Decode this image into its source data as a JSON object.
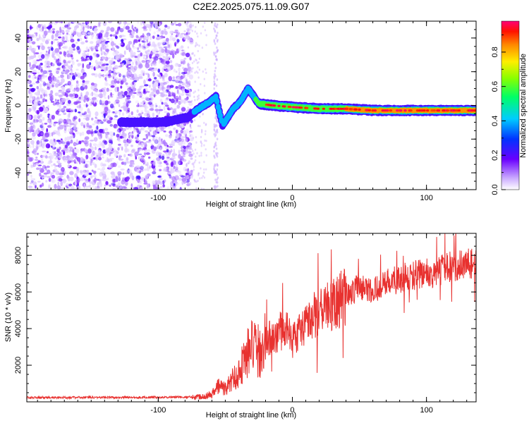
{
  "title": "C2E2.2025.075.11.09.G07",
  "chart_data": [
    {
      "type": "heatmap",
      "title": "C2E2.2025.075.11.09.G07",
      "xlabel": "Height of straight line (km)",
      "ylabel": "Frequency (Hz)",
      "xlim": [
        -198,
        137
      ],
      "ylim": [
        -50,
        50
      ],
      "xticks": [
        -100,
        0,
        100
      ],
      "yticks": [
        -40,
        -20,
        0,
        20,
        40
      ],
      "colorbar": {
        "label": "Normalized spectral amplitude",
        "range": [
          0,
          0.98
        ],
        "ticks": [
          "0.0",
          "0.2",
          "0.4",
          "0.6",
          "0.8"
        ],
        "colormap": [
          "#ffffff",
          "#6a00ff",
          "#0055ff",
          "#00ffff",
          "#00ff00",
          "#ffff00",
          "#ff8800",
          "#ff0000",
          "#ff0066"
        ]
      },
      "features": {
        "noise_region_x": [
          -198,
          -78
        ],
        "faint_noise_column_x": -57,
        "track": [
          {
            "x": -128,
            "y": -10,
            "v": 0.3
          },
          {
            "x": -110,
            "y": -10,
            "v": 0.35
          },
          {
            "x": -95,
            "y": -10,
            "v": 0.3
          },
          {
            "x": -78,
            "y": -7,
            "v": 0.3
          },
          {
            "x": -70,
            "y": -2,
            "v": 0.4
          },
          {
            "x": -62,
            "y": 2,
            "v": 0.5
          },
          {
            "x": -57,
            "y": 5,
            "v": 0.4
          },
          {
            "x": -52,
            "y": -12,
            "v": 0.35
          },
          {
            "x": -45,
            "y": -3,
            "v": 0.4
          },
          {
            "x": -38,
            "y": 3,
            "v": 0.45
          },
          {
            "x": -33,
            "y": 10,
            "v": 0.45
          },
          {
            "x": -25,
            "y": 1,
            "v": 0.6
          },
          {
            "x": -15,
            "y": 0,
            "v": 0.75
          },
          {
            "x": 0,
            "y": -1,
            "v": 0.7
          },
          {
            "x": 20,
            "y": -2,
            "v": 0.75
          },
          {
            "x": 40,
            "y": -2,
            "v": 0.8
          },
          {
            "x": 60,
            "y": -3,
            "v": 0.8
          },
          {
            "x": 80,
            "y": -3,
            "v": 0.85
          },
          {
            "x": 100,
            "y": -3,
            "v": 0.85
          },
          {
            "x": 120,
            "y": -3,
            "v": 0.9
          },
          {
            "x": 137,
            "y": -3,
            "v": 0.9
          }
        ]
      }
    },
    {
      "type": "line",
      "xlabel": "Height of straight line (km)",
      "ylabel": "SNR (10 * v/v)",
      "xlim": [
        -198,
        137
      ],
      "ylim": [
        0,
        9200
      ],
      "xticks": [
        -100,
        0,
        100
      ],
      "yticks": [
        2000,
        4000,
        6000,
        8000
      ],
      "color": "#e8312f",
      "x": [
        -198,
        -150,
        -100,
        -80,
        -70,
        -60,
        -55,
        -50,
        -45,
        -40,
        -35,
        -30,
        -25,
        -20,
        -15,
        -10,
        -5,
        0,
        10,
        20,
        30,
        40,
        50,
        60,
        70,
        80,
        90,
        100,
        105,
        110,
        120,
        137
      ],
      "values": [
        230,
        240,
        250,
        260,
        280,
        400,
        900,
        700,
        1200,
        1600,
        2500,
        3000,
        2700,
        3300,
        3600,
        3800,
        4000,
        3300,
        4400,
        5000,
        5300,
        5800,
        6300,
        6100,
        6500,
        6700,
        6900,
        7000,
        6800,
        7200,
        7400,
        7600
      ]
    }
  ]
}
